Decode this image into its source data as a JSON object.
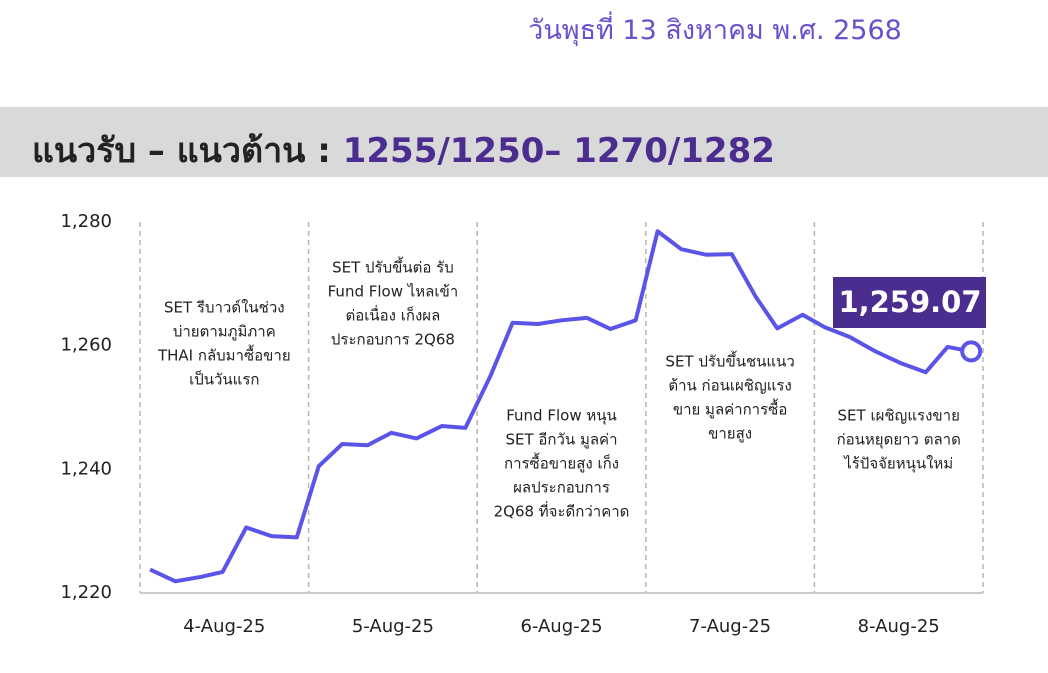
{
  "date": "วันพุธที่ 13 สิงหาคม พ.ศ. 2568",
  "header": {
    "title": "แนวรับ – แนวต้าน :",
    "levels": "1255/1250– 1270/1282"
  },
  "chart_data": {
    "type": "line",
    "x": [
      0.06,
      0.21,
      0.36,
      0.49,
      0.63,
      0.78,
      0.93,
      1.06,
      1.2,
      1.35,
      1.49,
      1.64,
      1.79,
      1.93,
      2.08,
      2.21,
      2.36,
      2.5,
      2.65,
      2.79,
      2.94,
      3.07,
      3.21,
      3.36,
      3.51,
      3.65,
      3.78,
      3.93,
      4.06,
      4.21,
      4.36,
      4.51,
      4.66,
      4.79,
      4.93
    ],
    "series": [
      {
        "color": "#5a54e8",
        "values": [
          1223.8,
          1221.9,
          1222.6,
          1223.4,
          1230.6,
          1229.2,
          1229.0,
          1240.5,
          1244.1,
          1243.9,
          1245.9,
          1245.0,
          1247.0,
          1246.7,
          1255.2,
          1263.7,
          1263.5,
          1264.1,
          1264.5,
          1262.7,
          1264.1,
          1278.5,
          1275.6,
          1274.7,
          1274.8,
          1268.0,
          1262.8,
          1265.0,
          1263.0,
          1261.4,
          1259.1,
          1257.2,
          1255.7,
          1259.8,
          1259.07
        ]
      }
    ],
    "last_label": "1,259.07",
    "xlim": [
      0,
      5
    ],
    "xticks": [
      {
        "value": 0.5,
        "label": "4-Aug-25"
      },
      {
        "value": 1.5,
        "label": "5-Aug-25"
      },
      {
        "value": 2.5,
        "label": "6-Aug-25"
      },
      {
        "value": 3.5,
        "label": "7-Aug-25"
      },
      {
        "value": 4.5,
        "label": "8-Aug-25"
      }
    ],
    "vlines": [
      0,
      1,
      2,
      3,
      4,
      5
    ],
    "ylim": [
      1220,
      1280
    ],
    "yticks": [
      {
        "value": 1220,
        "label": "1,220"
      },
      {
        "value": 1240,
        "label": "1,240"
      },
      {
        "value": 1260,
        "label": "1,260"
      },
      {
        "value": 1280,
        "label": "1,280"
      }
    ],
    "annotations": [
      [
        "SET รีบาวด์ในช่วง",
        "บ่ายตามภูมิภาค",
        "THAI กลับมาซื้อขาย",
        "เป็นวันแรก"
      ],
      [
        "SET ปรับขึ้นต่อ รับ",
        "Fund Flow ไหลเข้า",
        "ต่อเนื่อง เก็งผล",
        "ประกอบการ 2Q68"
      ],
      [
        "Fund Flow หนุน",
        "SET อีกวัน มูลค่า",
        "การซื้อขายสูง เก็ง",
        "ผลประกอบการ",
        "2Q68 ที่จะดีกว่าคาด"
      ],
      [
        "SET ปรับขึ้นชนแนว",
        "ต้าน ก่อนเผชิญแรง",
        "ขาย มูลค่าการซื้อ",
        "ขายสูง"
      ],
      [
        "SET เผชิญแรงขาย",
        "ก่อนหยุดยาว ตลาด",
        "ไร้ปัจจัยหนุนใหม่"
      ]
    ]
  }
}
